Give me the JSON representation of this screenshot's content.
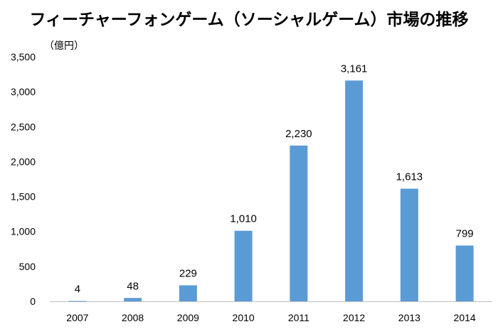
{
  "chart_data": {
    "type": "bar",
    "title": "フィーチャーフォンゲーム（ソーシャルゲーム）市場の推移",
    "unit_label": "（億円）",
    "categories": [
      "2007",
      "2008",
      "2009",
      "2010",
      "2011",
      "2012",
      "2013",
      "2014"
    ],
    "values": [
      4,
      48,
      229,
      1010,
      2230,
      3161,
      1613,
      799
    ],
    "data_labels": [
      "4",
      "48",
      "229",
      "1,010",
      "2,230",
      "3,161",
      "1,613",
      "799"
    ],
    "y_ticks": [
      "0",
      "500",
      "1,000",
      "1,500",
      "2,000",
      "2,500",
      "3,000",
      "3,500"
    ],
    "ylim": [
      0,
      3500
    ],
    "xlabel": "",
    "ylabel": "",
    "grid": false,
    "legend": "none",
    "bar_color": "#5b9bd5"
  }
}
